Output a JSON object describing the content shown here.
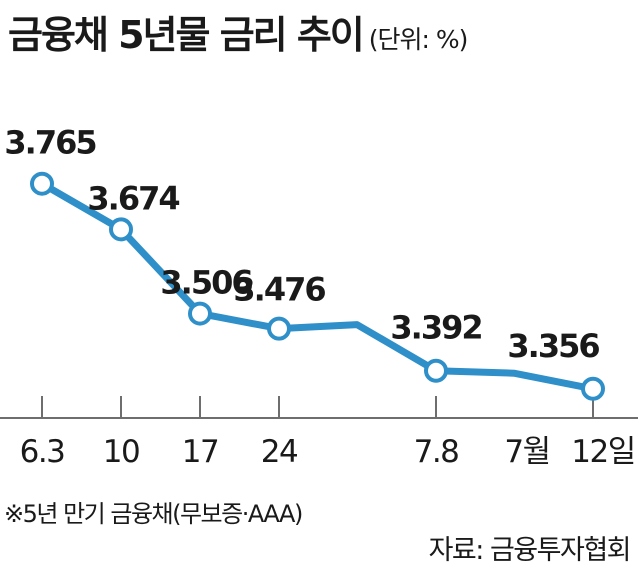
{
  "title": "금융채 5년물 금리 추이",
  "unit": "(단위: %)",
  "footnote": "※5년 만기 금융채(무보증·AAA)",
  "source": "자료: 금융투자협회",
  "colors": {
    "line": "#2f8fc9",
    "marker_fill": "#ffffff",
    "axis": "#6e6e6e",
    "text": "#1a1a1a"
  },
  "chart_data": {
    "type": "line",
    "title": "금융채 5년물 금리 추이",
    "unit": "%",
    "x": [
      "6.3",
      "10",
      "17",
      "24",
      "",
      "7.8",
      "",
      "12일"
    ],
    "xlabels_shown": [
      "6.3",
      "10",
      "17",
      "24",
      "7.8",
      "7월",
      "12일"
    ],
    "values": [
      3.765,
      3.674,
      3.506,
      3.476,
      3.484,
      3.392,
      3.387,
      3.356
    ],
    "labels": [
      "3.765",
      "3.674",
      "3.506",
      "3.476",
      "",
      "3.392",
      "",
      "3.356"
    ],
    "markers": [
      true,
      true,
      true,
      true,
      false,
      true,
      false,
      true
    ],
    "ylim": [
      3.2,
      3.9
    ],
    "grid": false,
    "legend": "none"
  }
}
